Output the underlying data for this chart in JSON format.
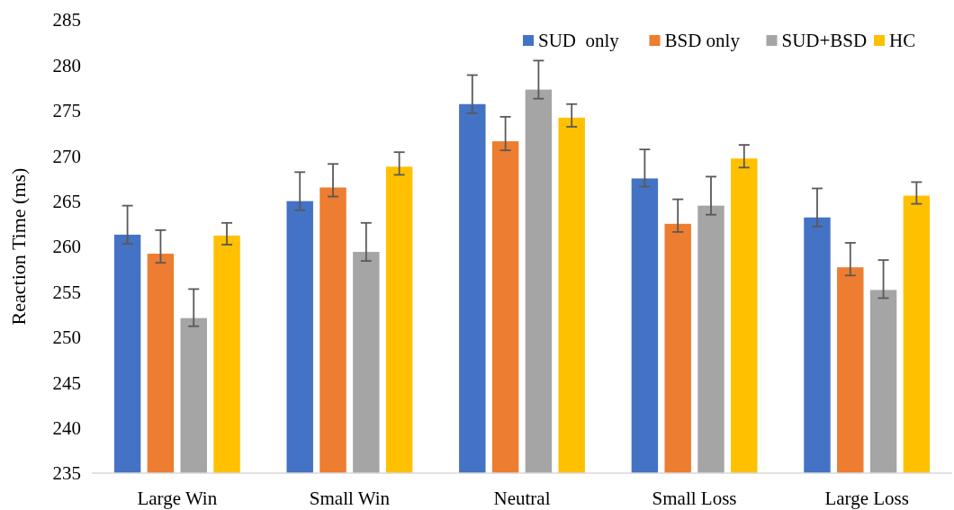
{
  "chart_data": {
    "type": "bar",
    "ylabel": "Reaction Time (ms)",
    "categories": [
      "Large Win",
      "Small Win",
      "Neutral",
      "Small Loss",
      "Large Loss"
    ],
    "series": [
      {
        "name": "SUD  only",
        "color": "#4472c4",
        "values": [
          261.3,
          265.0,
          275.7,
          267.5,
          263.2
        ],
        "errors": [
          [
            260.3,
            264.5
          ],
          [
            264.0,
            268.2
          ],
          [
            274.7,
            278.9
          ],
          [
            266.6,
            270.7
          ],
          [
            262.2,
            266.4
          ]
        ]
      },
      {
        "name": "BSD only",
        "color": "#ed7d31",
        "values": [
          259.2,
          266.5,
          271.6,
          262.5,
          257.7
        ],
        "errors": [
          [
            258.2,
            261.8
          ],
          [
            265.5,
            269.1
          ],
          [
            270.6,
            274.3
          ],
          [
            261.6,
            265.2
          ],
          [
            256.8,
            260.4
          ]
        ]
      },
      {
        "name": "SUD+BSD",
        "color": "#a5a5a5",
        "values": [
          252.1,
          259.4,
          277.3,
          264.5,
          255.2
        ],
        "errors": [
          [
            251.2,
            255.3
          ],
          [
            258.4,
            262.6
          ],
          [
            276.3,
            280.5
          ],
          [
            263.5,
            267.7
          ],
          [
            254.3,
            258.5
          ]
        ]
      },
      {
        "name": "HC",
        "color": "#ffc000",
        "values": [
          261.2,
          268.8,
          274.2,
          269.7,
          265.6
        ],
        "errors": [
          [
            260.2,
            262.6
          ],
          [
            267.9,
            270.4
          ],
          [
            273.2,
            275.7
          ],
          [
            268.7,
            271.2
          ],
          [
            264.7,
            267.1
          ]
        ]
      }
    ],
    "ylim": [
      235,
      285
    ],
    "yticks": [
      235,
      240,
      245,
      250,
      255,
      260,
      265,
      270,
      275,
      280,
      285
    ],
    "grid": false,
    "legend": "top right"
  }
}
